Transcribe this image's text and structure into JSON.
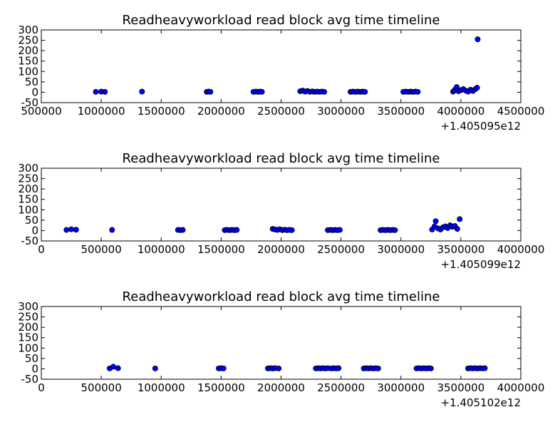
{
  "colors": {
    "marker_fill": "#0000ff",
    "marker_edge": "#000000",
    "axes": "#000000",
    "background": "#ffffff"
  },
  "chart_data": [
    {
      "type": "scatter",
      "title": "Readheavyworkload read block avg time timeline",
      "xlabel": "",
      "ylabel": "",
      "xlim": [
        500000,
        4500000
      ],
      "ylim": [
        -50,
        300
      ],
      "xticks": [
        "500000",
        "1000000",
        "1500000",
        "2000000",
        "2500000",
        "3000000",
        "3500000",
        "4000000",
        "4500000"
      ],
      "yticks": [
        "-50",
        "0",
        "50",
        "100",
        "150",
        "200",
        "250",
        "300"
      ],
      "x_offset_label": "+1.405095e12",
      "grid": false,
      "series": [
        {
          "x": [
            955000,
            1000000,
            1030000,
            1340000,
            1880000,
            1895000,
            1910000,
            2270000,
            2290000,
            2310000,
            2325000,
            2340000,
            2660000,
            2680000,
            2700000,
            2720000,
            2740000,
            2760000,
            2780000,
            2800000,
            2820000,
            2840000,
            2860000,
            3080000,
            3100000,
            3120000,
            3140000,
            3160000,
            3180000,
            3200000,
            3520000,
            3540000,
            3560000,
            3580000,
            3600000,
            3620000,
            3640000,
            3935000,
            3950000,
            3965000,
            3980000,
            4000000,
            4020000,
            4040000,
            4060000,
            4080000,
            4100000,
            4120000,
            4135000,
            4140000
          ],
          "y": [
            2,
            3,
            2,
            3,
            2,
            3,
            2,
            2,
            3,
            2,
            3,
            2,
            5,
            8,
            3,
            6,
            2,
            4,
            2,
            3,
            2,
            3,
            2,
            2,
            3,
            2,
            3,
            2,
            3,
            2,
            2,
            3,
            2,
            3,
            2,
            3,
            2,
            3,
            12,
            25,
            5,
            10,
            15,
            8,
            3,
            12,
            6,
            15,
            22,
            255
          ]
        }
      ]
    },
    {
      "type": "scatter",
      "title": "Readheavyworkload read block avg time timeline",
      "xlabel": "",
      "ylabel": "",
      "xlim": [
        0,
        4000000
      ],
      "ylim": [
        -50,
        300
      ],
      "xticks": [
        "0",
        "500000",
        "1000000",
        "1500000",
        "2000000",
        "2500000",
        "3000000",
        "3500000",
        "4000000"
      ],
      "yticks": [
        "-50",
        "0",
        "50",
        "100",
        "150",
        "200",
        "250",
        "300"
      ],
      "x_offset_label": "+1.405099e12",
      "grid": false,
      "series": [
        {
          "x": [
            210000,
            250000,
            290000,
            590000,
            1140000,
            1160000,
            1180000,
            1530000,
            1550000,
            1570000,
            1590000,
            1610000,
            1630000,
            1930000,
            1950000,
            1970000,
            1990000,
            2010000,
            2030000,
            2050000,
            2070000,
            2090000,
            2390000,
            2410000,
            2430000,
            2450000,
            2470000,
            2490000,
            2830000,
            2850000,
            2870000,
            2890000,
            2910000,
            2930000,
            2950000,
            3260000,
            3280000,
            3290000,
            3310000,
            3330000,
            3350000,
            3370000,
            3390000,
            3410000,
            3430000,
            3450000,
            3470000,
            3490000
          ],
          "y": [
            3,
            6,
            4,
            3,
            3,
            2,
            3,
            2,
            3,
            2,
            3,
            2,
            3,
            8,
            5,
            3,
            6,
            2,
            4,
            2,
            3,
            2,
            2,
            3,
            2,
            3,
            2,
            3,
            2,
            3,
            2,
            3,
            2,
            3,
            2,
            5,
            20,
            45,
            10,
            5,
            15,
            20,
            12,
            25,
            18,
            22,
            8,
            55
          ]
        }
      ]
    },
    {
      "type": "scatter",
      "title": "Readheavyworkload read block avg time timeline",
      "xlabel": "",
      "ylabel": "",
      "xlim": [
        0,
        4000000
      ],
      "ylim": [
        -50,
        300
      ],
      "xticks": [
        "0",
        "500000",
        "1000000",
        "1500000",
        "2000000",
        "2500000",
        "3000000",
        "3500000",
        "4000000"
      ],
      "yticks": [
        "-50",
        "0",
        "50",
        "100",
        "150",
        "200",
        "250",
        "300"
      ],
      "x_offset_label": "+1.405102e12",
      "grid": false,
      "series": [
        {
          "x": [
            570000,
            600000,
            640000,
            950000,
            1480000,
            1500000,
            1520000,
            1890000,
            1910000,
            1930000,
            1950000,
            1980000,
            2290000,
            2310000,
            2330000,
            2350000,
            2370000,
            2390000,
            2420000,
            2440000,
            2460000,
            2480000,
            2690000,
            2710000,
            2730000,
            2750000,
            2770000,
            2790000,
            2810000,
            3130000,
            3150000,
            3170000,
            3190000,
            3210000,
            3230000,
            3250000,
            3560000,
            3580000,
            3600000,
            3620000,
            3640000,
            3660000,
            3680000,
            3700000
          ],
          "y": [
            2,
            10,
            3,
            2,
            2,
            3,
            2,
            2,
            3,
            2,
            3,
            2,
            2,
            3,
            2,
            3,
            2,
            3,
            2,
            3,
            2,
            3,
            2,
            3,
            2,
            3,
            2,
            3,
            2,
            2,
            3,
            2,
            3,
            2,
            3,
            2,
            2,
            3,
            2,
            3,
            2,
            3,
            2,
            3
          ]
        }
      ]
    }
  ]
}
